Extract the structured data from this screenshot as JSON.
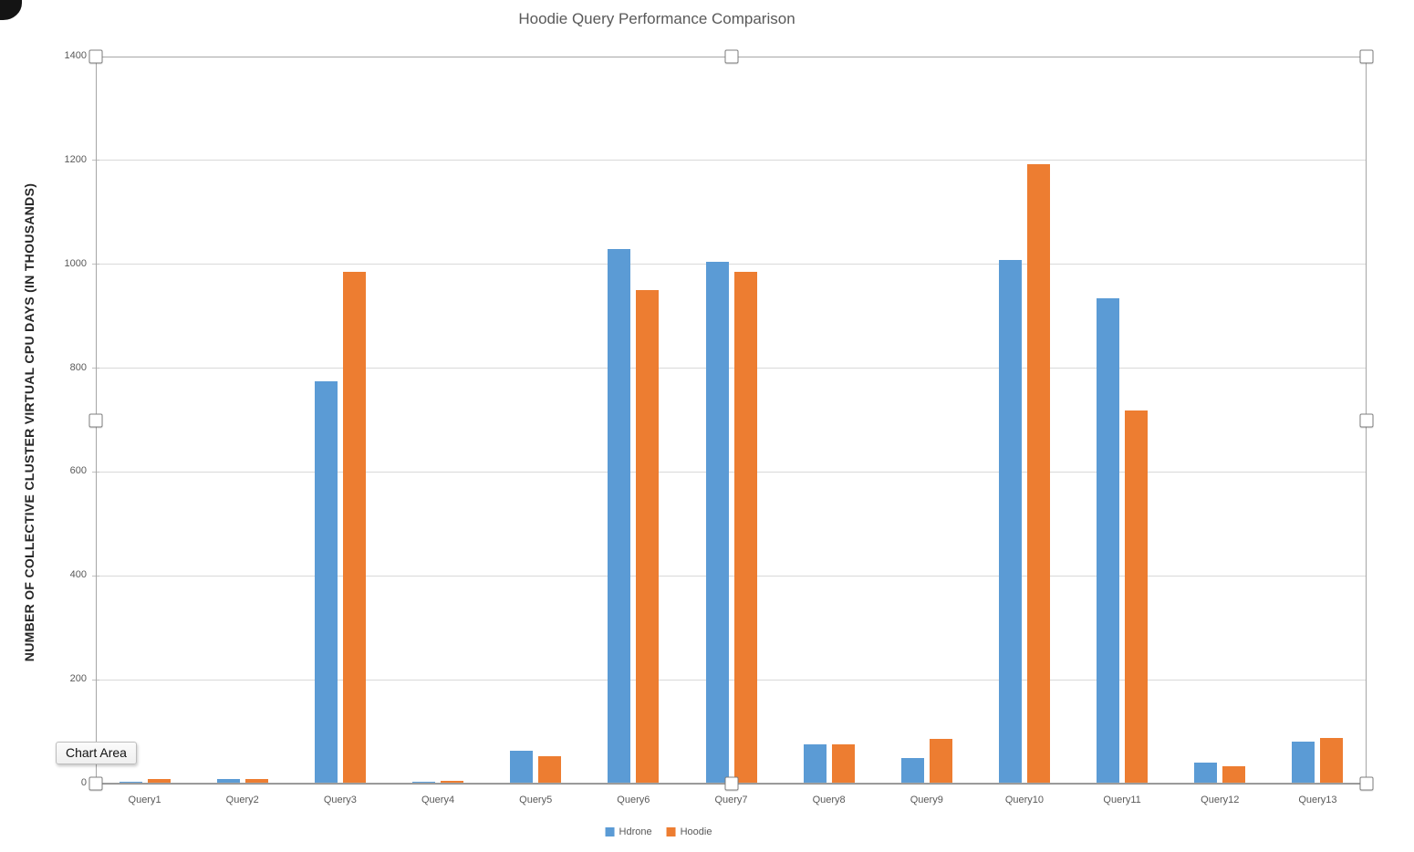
{
  "title": "Hoodie Query Performance Comparison",
  "tooltip": "Chart Area",
  "chart_data": {
    "type": "bar",
    "title": "Hoodie Query Performance Comparison",
    "xlabel": "",
    "ylabel": "NUMBER OF COLLECTIVE CLUSTER VIRTUAL CPU DAYS (IN THOUSANDS)",
    "ylim": [
      0,
      1400
    ],
    "yticks": [
      0,
      200,
      400,
      600,
      800,
      1000,
      1200,
      1400
    ],
    "grid": true,
    "legend_position": "bottom",
    "categories": [
      "Query1",
      "Query2",
      "Query3",
      "Query4",
      "Query5",
      "Query6",
      "Query7",
      "Query8",
      "Query9",
      "Query10",
      "Query11",
      "Query12",
      "Query13"
    ],
    "series": [
      {
        "name": "Hdrone",
        "color": "#5B9BD5",
        "values": [
          4,
          8,
          775,
          4,
          63,
          1030,
          1005,
          75,
          50,
          1008,
          935,
          40,
          80
        ]
      },
      {
        "name": "Hoodie",
        "color": "#ED7D31",
        "values": [
          8,
          8,
          985,
          5,
          52,
          950,
          985,
          76,
          86,
          1193,
          718,
          34,
          88
        ]
      }
    ]
  },
  "colors": {
    "gridline": "#D9D9D9",
    "axis_line": "#8C8C8C",
    "selection_border": "#A6A6A6",
    "text": "#595959"
  }
}
